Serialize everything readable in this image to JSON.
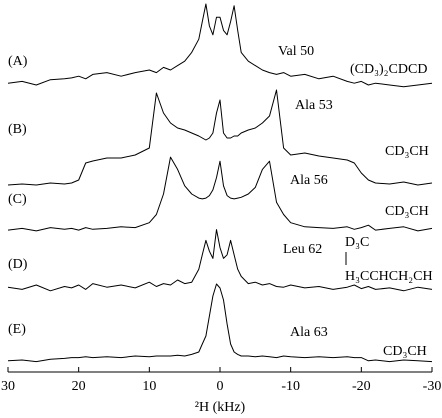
{
  "chart_data": {
    "type": "line",
    "x_label": "²H (kHz)",
    "x": [
      30,
      28,
      26,
      24,
      22,
      21,
      20,
      19,
      18,
      16,
      14,
      12,
      10,
      9,
      8,
      7,
      6,
      5,
      4,
      3,
      2.5,
      2,
      1.5,
      1,
      0.5,
      0,
      -0.5,
      -1,
      -1.5,
      -2,
      -2.5,
      -3,
      -4,
      -5,
      -6,
      -7,
      -8,
      -9,
      -10,
      -12,
      -14,
      -16,
      -18,
      -19,
      -20,
      -21,
      -22,
      -24,
      -26,
      -28,
      -30
    ],
    "xlim": [
      30,
      -30
    ],
    "xticks": [
      30,
      20,
      10,
      0,
      -10,
      -20,
      -30
    ],
    "ylim": [
      0,
      100
    ],
    "color": "#000000",
    "series": [
      {
        "panel": "(A)",
        "name": "Val 50",
        "group": "(CD₃)₂CDCD",
        "values": [
          10,
          12,
          8,
          14,
          15,
          16,
          18,
          15,
          20,
          22,
          18,
          22,
          25,
          22,
          28,
          25,
          30,
          35,
          45,
          60,
          80,
          100,
          75,
          65,
          85,
          85,
          70,
          65,
          80,
          98,
          70,
          45,
          35,
          30,
          25,
          22,
          20,
          22,
          18,
          20,
          15,
          18,
          12,
          10,
          12,
          8,
          10,
          8,
          6,
          8,
          10
        ]
      },
      {
        "panel": "(B)",
        "name": "Ala 53",
        "group": "CD₃CH",
        "values": [
          3,
          4,
          3,
          5,
          4,
          5,
          8,
          25,
          27,
          30,
          30,
          33,
          40,
          95,
          75,
          65,
          60,
          58,
          55,
          52,
          50,
          48,
          50,
          55,
          75,
          88,
          55,
          50,
          50,
          52,
          52,
          55,
          58,
          60,
          65,
          72,
          98,
          40,
          33,
          35,
          32,
          30,
          28,
          25,
          15,
          8,
          5,
          4,
          6,
          3,
          5
        ]
      },
      {
        "panel": "(C)",
        "name": "Ala 56",
        "group": "CD₃CH",
        "values": [
          6,
          8,
          5,
          9,
          7,
          8,
          6,
          9,
          7,
          8,
          10,
          9,
          15,
          25,
          50,
          95,
          80,
          60,
          50,
          45,
          44,
          45,
          48,
          55,
          70,
          90,
          60,
          48,
          45,
          44,
          45,
          46,
          50,
          58,
          80,
          90,
          40,
          25,
          15,
          10,
          9,
          8,
          10,
          7,
          9,
          12,
          6,
          8,
          10,
          5,
          8
        ]
      },
      {
        "panel": "(D)",
        "name": "Leu 62",
        "group": "D₃C H₃CCHCH₂CH",
        "values": [
          15,
          12,
          18,
          10,
          16,
          14,
          18,
          12,
          20,
          15,
          18,
          14,
          22,
          16,
          20,
          18,
          25,
          20,
          22,
          40,
          60,
          80,
          65,
          55,
          95,
          70,
          55,
          60,
          80,
          60,
          40,
          30,
          20,
          22,
          18,
          20,
          16,
          15,
          18,
          14,
          16,
          12,
          15,
          18,
          13,
          16,
          12,
          14,
          10,
          15,
          12
        ]
      },
      {
        "panel": "(E)",
        "name": "Ala 63",
        "group": "CD₃CH",
        "values": [
          4,
          5,
          3,
          6,
          7,
          8,
          8,
          9,
          8,
          9,
          8,
          10,
          9,
          10,
          10,
          10,
          11,
          10,
          12,
          15,
          25,
          35,
          60,
          85,
          100,
          95,
          80,
          50,
          25,
          15,
          12,
          10,
          10,
          9,
          10,
          9,
          8,
          10,
          9,
          8,
          9,
          8,
          9,
          8,
          8,
          4,
          5,
          3,
          5,
          4,
          3
        ]
      }
    ]
  }
}
